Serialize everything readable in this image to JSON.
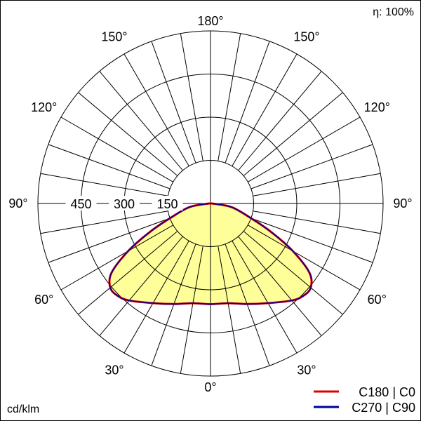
{
  "chart_data": {
    "type": "polar",
    "top_right_label": "η: 100%",
    "unit_label": "cd/klm",
    "radial_ticks": [
      150,
      300,
      450
    ],
    "radial_max": 600,
    "angle_labels": [
      {
        "angle": 0,
        "text": "0°",
        "sides": [
          "center"
        ]
      },
      {
        "angle": 30,
        "text": "30°",
        "sides": [
          "left",
          "right"
        ]
      },
      {
        "angle": 60,
        "text": "60°",
        "sides": [
          "left",
          "right"
        ]
      },
      {
        "angle": 90,
        "text": "90°",
        "sides": [
          "left",
          "right"
        ]
      },
      {
        "angle": 120,
        "text": "120°",
        "sides": [
          "left",
          "right"
        ]
      },
      {
        "angle": 150,
        "text": "150°",
        "sides": [
          "left",
          "right"
        ]
      },
      {
        "angle": 180,
        "text": "180°",
        "sides": [
          "center"
        ]
      }
    ],
    "fill_color": "#ffff99",
    "series": [
      {
        "name": "C180 | C0",
        "color": "#dd0000",
        "angles": [
          0,
          10,
          20,
          30,
          40,
          45,
          50,
          55,
          60,
          65,
          70,
          80,
          90
        ],
        "values": [
          350,
          352,
          372,
          400,
          440,
          455,
          455,
          420,
          330,
          230,
          150,
          75,
          5
        ]
      },
      {
        "name": "C270 | C90",
        "color": "#000099",
        "angles": [
          0,
          10,
          20,
          30,
          40,
          45,
          50,
          55,
          60,
          65,
          70,
          80,
          90
        ],
        "values": [
          350,
          352,
          372,
          400,
          440,
          455,
          455,
          420,
          330,
          230,
          150,
          75,
          5
        ]
      }
    ]
  }
}
